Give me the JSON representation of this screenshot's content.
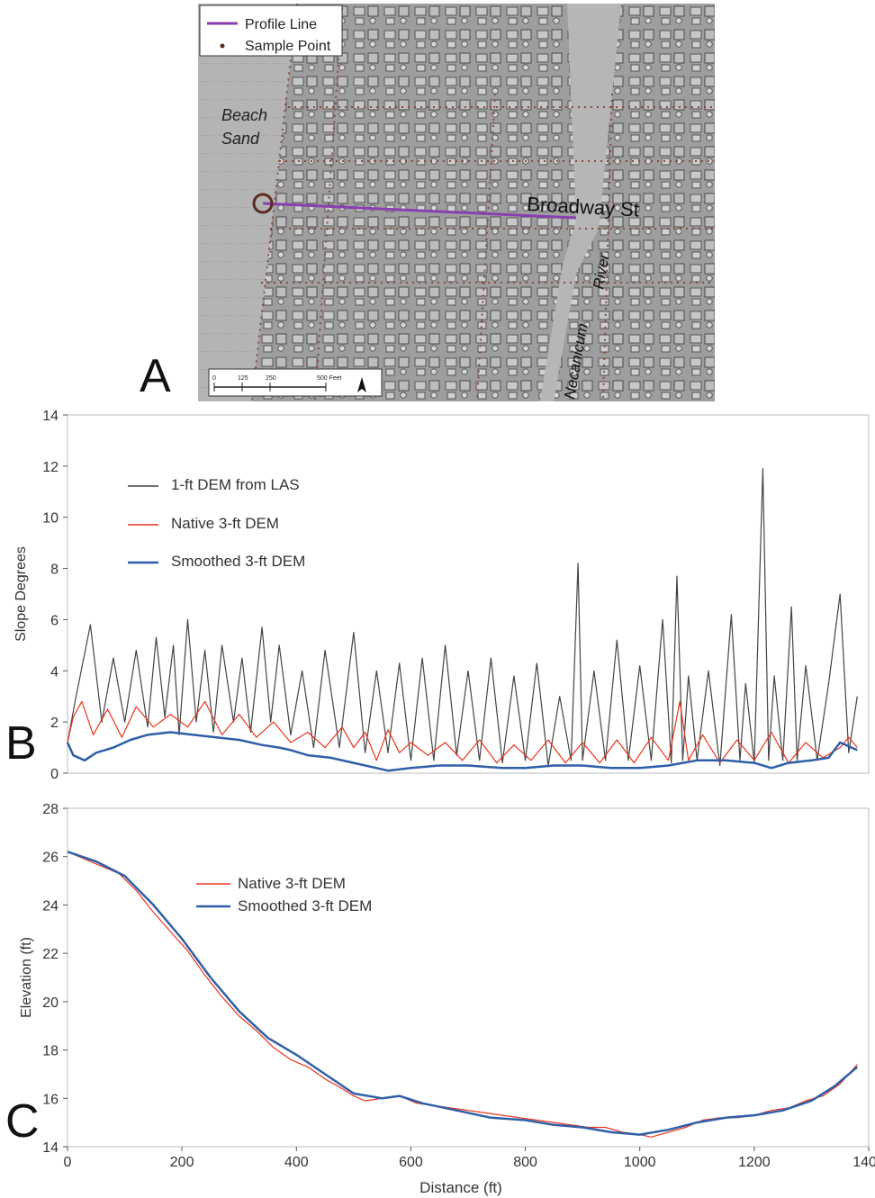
{
  "panels": {
    "a": {
      "letter": "A"
    },
    "b": {
      "letter": "B"
    },
    "c": {
      "letter": "C"
    }
  },
  "map": {
    "legend": {
      "profile_line": "Profile Line",
      "sample_point": "Sample Point"
    },
    "labels": {
      "beach_sand_line1": "Beach",
      "beach_sand_line2": "Sand",
      "street": "Broadway St",
      "river_word1": "Necanicum",
      "river_word2": "River"
    },
    "scalebar": {
      "ticks": [
        "0",
        "125",
        "250",
        "500 Feet"
      ]
    },
    "colors": {
      "profile_line": "#8a3fb0",
      "sample_point": "#5a2a1e",
      "road_dots": "#8a4a3c",
      "shade_bg": "#a9a9a9"
    }
  },
  "chart_data": [
    {
      "type": "line",
      "panel": "B",
      "xlabel": "",
      "ylabel": "Slope Degrees",
      "xlim": [
        0,
        1400
      ],
      "ylim": [
        0,
        14
      ],
      "yticks": [
        0,
        2,
        4,
        6,
        8,
        10,
        12,
        14
      ],
      "grid": false,
      "legend_position": "top-left",
      "series": [
        {
          "name": "1-ft DEM from LAS",
          "color": "#444444",
          "x": [
            0,
            15,
            40,
            60,
            80,
            100,
            120,
            140,
            155,
            170,
            185,
            195,
            210,
            225,
            240,
            255,
            270,
            290,
            305,
            320,
            340,
            355,
            370,
            390,
            410,
            430,
            450,
            475,
            500,
            520,
            540,
            560,
            580,
            600,
            620,
            640,
            660,
            680,
            700,
            720,
            740,
            760,
            780,
            800,
            820,
            840,
            860,
            880,
            892,
            900,
            920,
            940,
            960,
            980,
            1000,
            1020,
            1040,
            1055,
            1065,
            1075,
            1085,
            1100,
            1120,
            1140,
            1160,
            1175,
            1185,
            1200,
            1215,
            1225,
            1235,
            1250,
            1265,
            1275,
            1290,
            1310,
            1330,
            1350,
            1365,
            1380
          ],
          "values": [
            1.2,
            3.0,
            5.8,
            2.0,
            4.5,
            2.0,
            4.8,
            1.8,
            5.3,
            2.2,
            5.0,
            1.5,
            6.0,
            2.0,
            4.8,
            1.6,
            5.0,
            2.0,
            4.5,
            1.6,
            5.7,
            2.0,
            5.0,
            1.5,
            4.0,
            1.0,
            4.8,
            1.0,
            5.5,
            0.8,
            4.0,
            0.8,
            4.3,
            0.5,
            4.5,
            0.5,
            5.0,
            0.7,
            4.0,
            0.5,
            4.5,
            0.4,
            3.8,
            0.5,
            4.3,
            0.3,
            3.0,
            0.5,
            8.2,
            0.5,
            4.0,
            0.5,
            5.2,
            0.5,
            4.2,
            0.5,
            6.0,
            0.4,
            7.7,
            0.5,
            3.8,
            0.5,
            4.0,
            0.3,
            6.2,
            0.5,
            3.5,
            0.4,
            11.9,
            0.5,
            3.8,
            0.5,
            6.5,
            0.5,
            4.2,
            0.5,
            3.5,
            7.0,
            0.8,
            3.0
          ]
        },
        {
          "name": "Native 3-ft DEM",
          "color": "#e8341c",
          "x": [
            0,
            10,
            25,
            45,
            70,
            95,
            120,
            150,
            180,
            210,
            240,
            270,
            300,
            330,
            360,
            390,
            420,
            450,
            480,
            500,
            520,
            540,
            560,
            580,
            600,
            630,
            660,
            690,
            720,
            750,
            780,
            810,
            840,
            870,
            900,
            930,
            960,
            990,
            1020,
            1050,
            1070,
            1085,
            1110,
            1140,
            1170,
            1200,
            1230,
            1260,
            1290,
            1320,
            1350,
            1365,
            1380
          ],
          "values": [
            1.2,
            2.2,
            2.8,
            1.5,
            2.5,
            1.4,
            2.6,
            1.8,
            2.3,
            1.8,
            2.8,
            1.5,
            2.3,
            1.4,
            2.0,
            1.2,
            1.6,
            1.0,
            1.8,
            1.0,
            1.6,
            0.5,
            1.7,
            0.8,
            1.2,
            0.7,
            1.2,
            0.5,
            1.3,
            0.4,
            1.1,
            0.5,
            1.3,
            0.4,
            1.2,
            0.4,
            1.3,
            0.4,
            1.4,
            0.5,
            2.8,
            0.5,
            1.5,
            0.4,
            1.3,
            0.5,
            1.6,
            0.4,
            1.2,
            0.6,
            1.0,
            1.4,
            1.0
          ]
        },
        {
          "name": "Smoothed 3-ft DEM",
          "color": "#2f5fa8",
          "x": [
            0,
            10,
            30,
            50,
            80,
            110,
            140,
            180,
            220,
            260,
            300,
            340,
            370,
            390,
            420,
            460,
            500,
            540,
            560,
            600,
            650,
            700,
            760,
            800,
            850,
            900,
            950,
            1000,
            1050,
            1100,
            1150,
            1200,
            1230,
            1260,
            1300,
            1330,
            1350,
            1380
          ],
          "values": [
            1.2,
            0.7,
            0.5,
            0.8,
            1.0,
            1.3,
            1.5,
            1.6,
            1.5,
            1.4,
            1.3,
            1.1,
            1.0,
            0.9,
            0.7,
            0.6,
            0.4,
            0.2,
            0.1,
            0.2,
            0.3,
            0.3,
            0.2,
            0.2,
            0.3,
            0.3,
            0.2,
            0.2,
            0.3,
            0.5,
            0.5,
            0.4,
            0.2,
            0.4,
            0.5,
            0.6,
            1.2,
            0.9
          ]
        }
      ]
    },
    {
      "type": "line",
      "panel": "C",
      "xlabel": "Distance (ft)",
      "ylabel": "Elevation (ft)",
      "xlim": [
        0,
        1400
      ],
      "ylim": [
        14,
        28
      ],
      "xticks": [
        0,
        200,
        400,
        600,
        800,
        1000,
        1200,
        1400
      ],
      "yticks": [
        14,
        16,
        18,
        20,
        22,
        24,
        26,
        28
      ],
      "grid": false,
      "legend_position": "top-center",
      "series": [
        {
          "name": "Native 3-ft DEM",
          "color": "#e8341c",
          "x": [
            0,
            30,
            60,
            90,
            120,
            150,
            180,
            210,
            240,
            270,
            300,
            330,
            360,
            390,
            420,
            450,
            480,
            500,
            520,
            550,
            580,
            610,
            640,
            670,
            700,
            730,
            760,
            790,
            820,
            850,
            880,
            910,
            940,
            970,
            1000,
            1020,
            1050,
            1080,
            1110,
            1140,
            1170,
            1200,
            1230,
            1260,
            1290,
            1320,
            1350,
            1380
          ],
          "values": [
            26.2,
            25.9,
            25.6,
            25.3,
            24.6,
            23.7,
            22.9,
            22.1,
            21.1,
            20.2,
            19.4,
            18.8,
            18.1,
            17.6,
            17.3,
            16.8,
            16.4,
            16.1,
            15.9,
            16.0,
            16.1,
            15.8,
            15.7,
            15.6,
            15.5,
            15.4,
            15.3,
            15.2,
            15.1,
            15.0,
            14.9,
            14.8,
            14.8,
            14.6,
            14.5,
            14.4,
            14.6,
            14.8,
            15.1,
            15.2,
            15.2,
            15.3,
            15.5,
            15.6,
            15.9,
            16.1,
            16.6,
            17.4
          ]
        },
        {
          "name": "Smoothed 3-ft DEM",
          "color": "#2f5fa8",
          "x": [
            0,
            50,
            100,
            150,
            200,
            250,
            300,
            350,
            400,
            450,
            500,
            550,
            580,
            620,
            680,
            740,
            800,
            850,
            900,
            950,
            1000,
            1050,
            1100,
            1150,
            1200,
            1250,
            1300,
            1340,
            1380
          ],
          "values": [
            26.2,
            25.8,
            25.2,
            24.0,
            22.6,
            21.0,
            19.6,
            18.5,
            17.8,
            17.0,
            16.2,
            16.0,
            16.1,
            15.8,
            15.5,
            15.2,
            15.1,
            14.9,
            14.8,
            14.6,
            14.5,
            14.7,
            15.0,
            15.2,
            15.3,
            15.5,
            15.9,
            16.5,
            17.3
          ]
        }
      ]
    }
  ]
}
